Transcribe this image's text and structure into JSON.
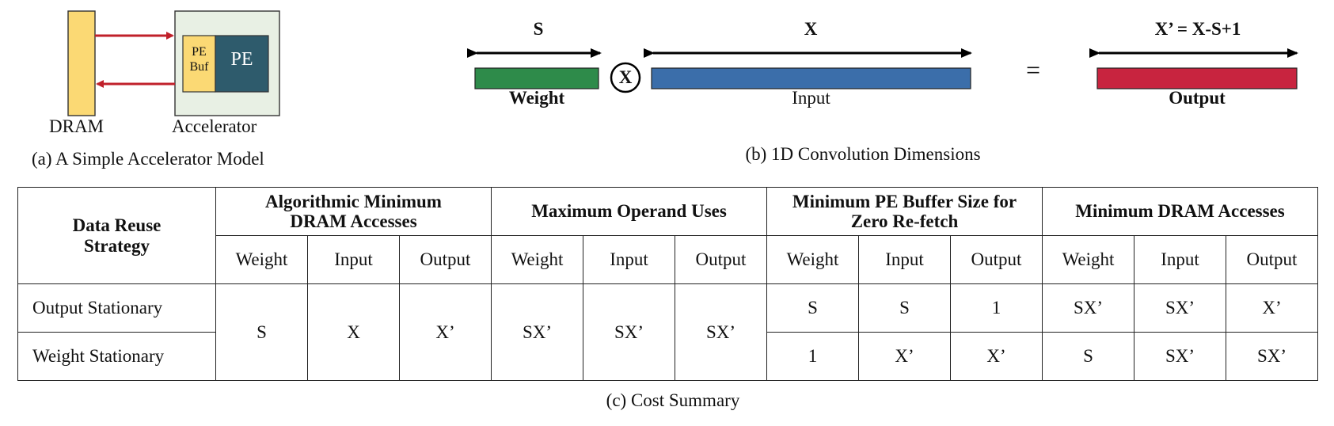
{
  "panel_a": {
    "pe_buf_line1": "PE",
    "pe_buf_line2": "Buf",
    "pe_label": "PE",
    "dram_label": "DRAM",
    "accelerator_label": "Accelerator",
    "caption": "(a) A Simple Accelerator Model",
    "colors": {
      "dram": "#fbd974",
      "accelerator_bg": "#e8f0e4",
      "pe": "#2e5b6c",
      "arrow": "#c0202a"
    }
  },
  "panel_b": {
    "s_label": "S",
    "x_label": "X",
    "out_dim_label": "X’ = X-S+1",
    "conv_symbol": "X",
    "equals": "=",
    "weight_label": "Weight",
    "input_label": "Input",
    "output_label": "Output",
    "caption": "(b) 1D Convolution Dimensions",
    "colors": {
      "weight": "#2e8b4a",
      "input": "#3b6eaa",
      "output": "#c8243f"
    }
  },
  "panel_c": {
    "caption": "(c) Cost Summary",
    "strategy_header": "Data Reuse Strategy",
    "groups": [
      {
        "title": "Algorithmic Minimum DRAM Accesses"
      },
      {
        "title": "Maximum Operand Uses"
      },
      {
        "title": "Minimum PE Buffer Size for Zero Re-fetch"
      },
      {
        "title": "Minimum DRAM Accesses"
      }
    ],
    "subheaders": [
      "Weight",
      "Input",
      "Output"
    ],
    "rows": [
      {
        "strategy": "Output Stationary",
        "shared": [
          "S",
          "X",
          "X’",
          "SX’",
          "SX’",
          "SX’"
        ],
        "buffer": [
          "S",
          "S",
          "1"
        ],
        "dram": [
          "SX’",
          "SX’",
          "X’"
        ]
      },
      {
        "strategy": "Weight Stationary",
        "buffer": [
          "1",
          "X’",
          "X’"
        ],
        "dram": [
          "S",
          "SX’",
          "SX’"
        ]
      }
    ]
  }
}
